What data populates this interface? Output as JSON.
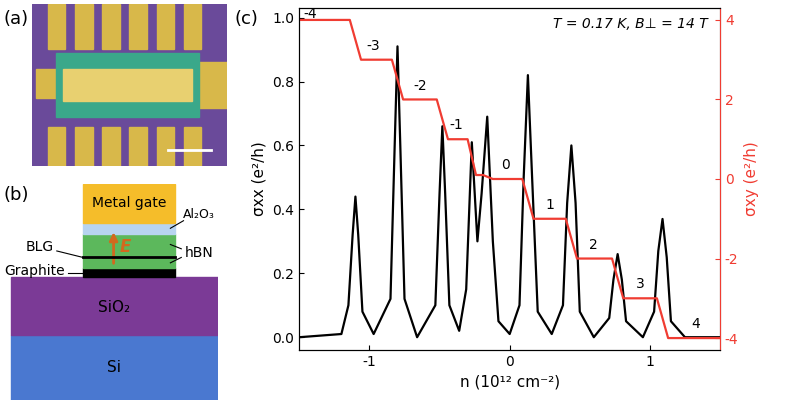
{
  "chart_data": {
    "type": "line",
    "panel_label": "(c)",
    "annotation": "T = 0.17 K, B⊥ = 14 T",
    "x_label": "n (10¹² cm⁻²)",
    "y_label": "σxx (e²/h)",
    "y2_label": "σxy (e²/h)",
    "xlim": [
      -1.5,
      1.5
    ],
    "xticks": [
      -1,
      0,
      1
    ],
    "ylim": [
      -0.04,
      1.03
    ],
    "yticks": [
      {
        "value": 0,
        "label": "0.0"
      },
      {
        "value": 0.2,
        "label": "0.2"
      },
      {
        "value": 0.4,
        "label": "0.4"
      },
      {
        "value": 0.6,
        "label": "0.6"
      },
      {
        "value": 0.8,
        "label": "0.8"
      },
      {
        "value": 1,
        "label": "1.0"
      }
    ],
    "y2lim": [
      -4.3,
      4.3
    ],
    "y2ticks": [
      -4,
      -2,
      0,
      2,
      4
    ],
    "series": [
      {
        "color": "#000000",
        "line_style": "solid",
        "x": [
          -1.5,
          -1.2,
          -1.15,
          -1.12,
          -1.1,
          -1.08,
          -1.05,
          -0.97,
          -0.85,
          -0.82,
          -0.8,
          -0.78,
          -0.75,
          -0.66,
          -0.53,
          -0.5,
          -0.48,
          -0.46,
          -0.43,
          -0.36,
          -0.31,
          -0.27,
          -0.23,
          -0.2,
          -0.16,
          -0.12,
          -0.08,
          0.0,
          0.07,
          0.1,
          0.13,
          0.16,
          0.2,
          0.3,
          0.38,
          0.41,
          0.44,
          0.47,
          0.5,
          0.6,
          0.71,
          0.74,
          0.77,
          0.8,
          0.83,
          0.95,
          1.03,
          1.06,
          1.09,
          1.12,
          1.15,
          1.25,
          1.5
        ],
        "values": [
          0.0,
          0.01,
          0.1,
          0.32,
          0.44,
          0.32,
          0.08,
          0.01,
          0.12,
          0.6,
          0.91,
          0.6,
          0.12,
          0.0,
          0.1,
          0.45,
          0.66,
          0.45,
          0.1,
          0.02,
          0.15,
          0.61,
          0.3,
          0.45,
          0.69,
          0.3,
          0.05,
          0.01,
          0.1,
          0.5,
          0.82,
          0.5,
          0.08,
          0.01,
          0.1,
          0.42,
          0.6,
          0.42,
          0.08,
          0.0,
          0.06,
          0.18,
          0.26,
          0.18,
          0.05,
          0.0,
          0.08,
          0.27,
          0.37,
          0.25,
          0.05,
          0.0,
          0.0
        ]
      },
      {
        "color": "#f03c32",
        "line_style": "solid",
        "axis": "y2",
        "x": [
          -1.5,
          -1.14,
          -1.06,
          -0.84,
          -0.76,
          -0.52,
          -0.44,
          -0.3,
          -0.24,
          -0.19,
          -0.12,
          0.09,
          0.17,
          0.4,
          0.48,
          0.73,
          0.81,
          1.05,
          1.13,
          1.5
        ],
        "values": [
          4,
          4,
          3,
          3,
          2,
          2,
          1,
          1,
          0.1,
          0.1,
          0,
          0,
          -1,
          -1,
          -2,
          -2,
          -3,
          -3,
          -4,
          -4
        ]
      }
    ],
    "filling_factors": [
      {
        "text": "-4",
        "x": -1.42,
        "y": 4.15
      },
      {
        "text": "-3",
        "x": -0.97,
        "y": 3.35
      },
      {
        "text": "-2",
        "x": -0.64,
        "y": 2.35
      },
      {
        "text": "-1",
        "x": -0.38,
        "y": 1.35
      },
      {
        "text": "0",
        "x": -0.03,
        "y": 0.35
      },
      {
        "text": "1",
        "x": 0.29,
        "y": -0.65
      },
      {
        "text": "2",
        "x": 0.6,
        "y": -1.65
      },
      {
        "text": "3",
        "x": 0.93,
        "y": -2.65
      },
      {
        "text": "4",
        "x": 1.33,
        "y": -3.65
      }
    ]
  },
  "panel_a": {
    "label": "(a)"
  },
  "panel_b": {
    "label": "(b)",
    "metal_gate": "Metal gate",
    "al2o3": "Al₂O₃",
    "blg": "BLG",
    "graphite": "Graphite",
    "hbn": "hBN",
    "sio2": "SiO₂",
    "si": "Si",
    "field": "E"
  }
}
